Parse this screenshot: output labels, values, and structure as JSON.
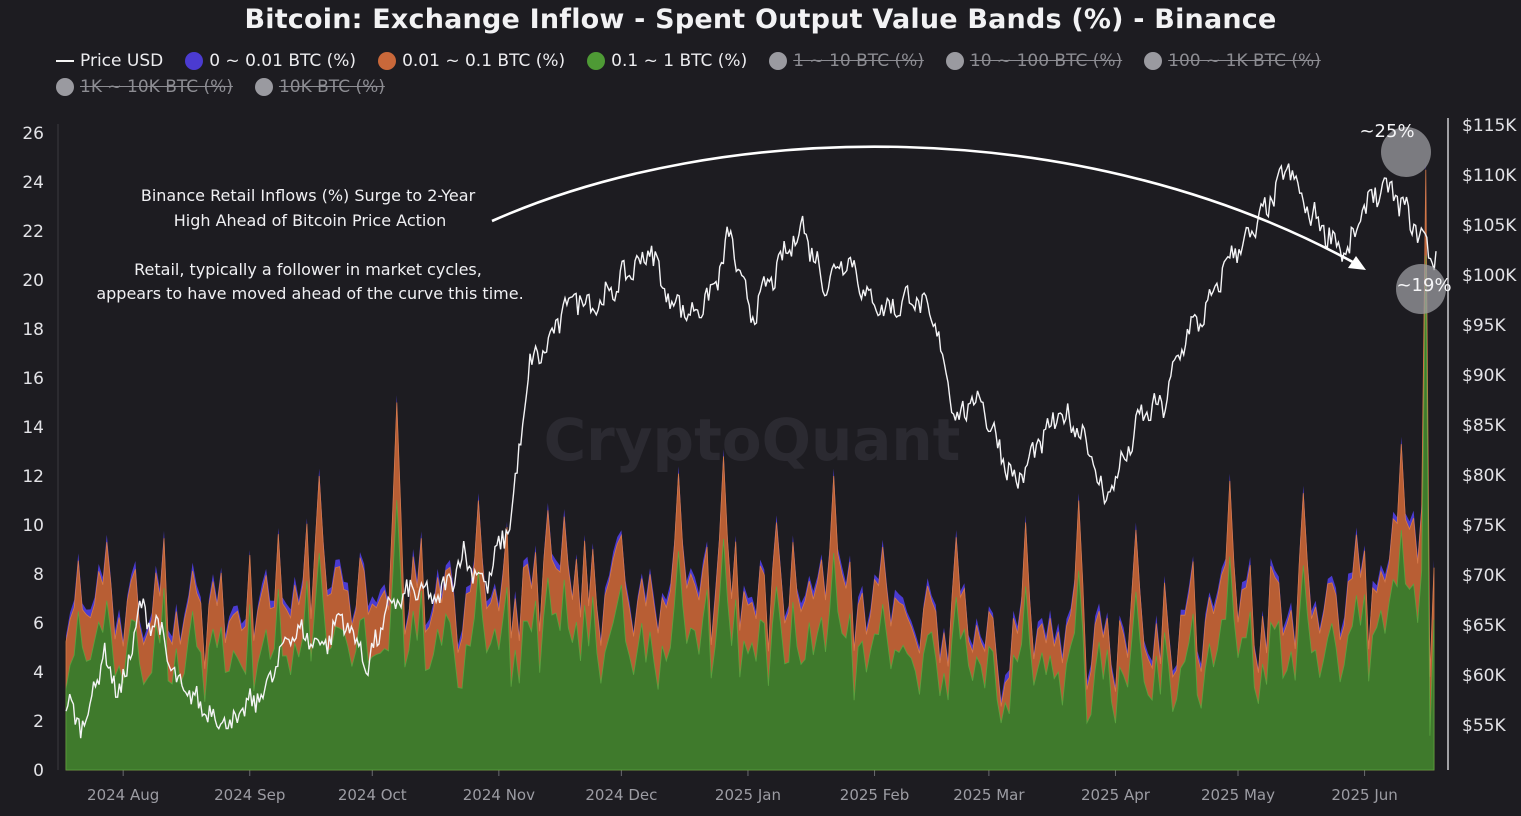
{
  "chart_data": {
    "type": "area",
    "title": "Bitcoin: Exchange Inflow - Spent Output Value Bands (%) - Binance",
    "watermark": "CryptoQuant",
    "y_left": {
      "min": 0,
      "max": 26,
      "ticks": [
        "0",
        "2",
        "4",
        "6",
        "8",
        "10",
        "12",
        "14",
        "16",
        "18",
        "20",
        "22",
        "24",
        "26"
      ]
    },
    "y_right": {
      "label": "Price USD",
      "min": 50000,
      "max": 115000,
      "ticks": [
        {
          "value": 55000,
          "label": "$55K"
        },
        {
          "value": 60000,
          "label": "$60K"
        },
        {
          "value": 65000,
          "label": "$65K"
        },
        {
          "value": 70000,
          "label": "$70K"
        },
        {
          "value": 75000,
          "label": "$75K"
        },
        {
          "value": 80000,
          "label": "$80K"
        },
        {
          "value": 85000,
          "label": "$85K"
        },
        {
          "value": 90000,
          "label": "$90K"
        },
        {
          "value": 95000,
          "label": "$95K"
        },
        {
          "value": 100000,
          "label": "$100K"
        },
        {
          "value": 105000,
          "label": "$105K"
        },
        {
          "value": 110000,
          "label": "$110K"
        },
        {
          "value": 115000,
          "label": "$115K"
        }
      ]
    },
    "x_ticks": [
      "2024 Aug",
      "2024 Sep",
      "2024 Oct",
      "2024 Nov",
      "2024 Dec",
      "2025 Jan",
      "2025 Feb",
      "2025 Mar",
      "2025 Apr",
      "2025 May",
      "2025 Jun"
    ],
    "x_range_days": 335,
    "x_tick_days": [
      14,
      45,
      75,
      106,
      136,
      167,
      198,
      226,
      257,
      287,
      318
    ],
    "legend": [
      {
        "label": "Price USD",
        "color": "#f4f4f4",
        "kind": "line",
        "enabled": true
      },
      {
        "label": "0 ~ 0.01 BTC (%)",
        "color": "#4b3bd1",
        "kind": "dot",
        "enabled": true
      },
      {
        "label": "0.01 ~ 0.1 BTC (%)",
        "color": "#c9683a",
        "kind": "dot",
        "enabled": true
      },
      {
        "label": "0.1 ~ 1 BTC (%)",
        "color": "#4e9a35",
        "kind": "dot",
        "enabled": true
      },
      {
        "label": "1 ~ 10 BTC (%)",
        "color": "#9a9aa0",
        "kind": "dot",
        "enabled": false
      },
      {
        "label": "10 ~ 100 BTC (%)",
        "color": "#9a9aa0",
        "kind": "dot",
        "enabled": false
      },
      {
        "label": "100 ~ 1K BTC (%)",
        "color": "#9a9aa0",
        "kind": "dot",
        "enabled": false
      },
      {
        "label": "1K ~ 10K BTC (%)",
        "color": "#9a9aa0",
        "kind": "dot",
        "enabled": false
      },
      {
        "label": "10K BTC (%)",
        "color": "#9a9aa0",
        "kind": "dot",
        "enabled": false
      }
    ],
    "series_keyframes": {
      "band_0.1_1_total_pct": [
        [
          0,
          4.5
        ],
        [
          20,
          4.6
        ],
        [
          40,
          4.3
        ],
        [
          60,
          4.9
        ],
        [
          75,
          5.4
        ],
        [
          90,
          4.7
        ],
        [
          106,
          4.6
        ],
        [
          125,
          5.3
        ],
        [
          140,
          5.1
        ],
        [
          160,
          4.9
        ],
        [
          180,
          4.6
        ],
        [
          200,
          4.4
        ],
        [
          220,
          3.9
        ],
        [
          230,
          3.1
        ],
        [
          250,
          3.6
        ],
        [
          270,
          3.7
        ],
        [
          290,
          4.2
        ],
        [
          305,
          4.5
        ],
        [
          320,
          5.0
        ],
        [
          335,
          6.5
        ]
      ],
      "band_0.01_0.1_total_pct": [
        [
          0,
          6.0
        ],
        [
          20,
          6.3
        ],
        [
          40,
          5.8
        ],
        [
          60,
          6.8
        ],
        [
          75,
          7.3
        ],
        [
          90,
          6.2
        ],
        [
          106,
          6.4
        ],
        [
          125,
          7.2
        ],
        [
          140,
          7.0
        ],
        [
          160,
          6.6
        ],
        [
          180,
          6.4
        ],
        [
          200,
          6.0
        ],
        [
          220,
          5.0
        ],
        [
          230,
          4.1
        ],
        [
          250,
          4.9
        ],
        [
          270,
          5.2
        ],
        [
          290,
          5.8
        ],
        [
          305,
          6.1
        ],
        [
          320,
          6.5
        ],
        [
          335,
          8.8
        ]
      ],
      "band_0_0.01_total_pct": [
        [
          0,
          6.2
        ],
        [
          20,
          6.5
        ],
        [
          40,
          6.0
        ],
        [
          60,
          7.0
        ],
        [
          75,
          7.5
        ],
        [
          90,
          6.4
        ],
        [
          106,
          6.6
        ],
        [
          125,
          7.4
        ],
        [
          140,
          7.2
        ],
        [
          160,
          6.8
        ],
        [
          180,
          6.6
        ],
        [
          200,
          6.2
        ],
        [
          220,
          5.2
        ],
        [
          230,
          4.3
        ],
        [
          250,
          5.1
        ],
        [
          270,
          5.4
        ],
        [
          290,
          6.0
        ],
        [
          305,
          6.3
        ],
        [
          320,
          6.7
        ],
        [
          335,
          9.0
        ]
      ],
      "spikes": [
        [
          10,
          9.6
        ],
        [
          36,
          8.0
        ],
        [
          62,
          12.3
        ],
        [
          81,
          15.3
        ],
        [
          101,
          11.3
        ],
        [
          118,
          10.9
        ],
        [
          150,
          12.4
        ],
        [
          161,
          13.1
        ],
        [
          174,
          10.4
        ],
        [
          188,
          12.3
        ],
        [
          200,
          9.4
        ],
        [
          218,
          9.8
        ],
        [
          235,
          10.4
        ],
        [
          248,
          11.3
        ],
        [
          262,
          10.1
        ],
        [
          285,
          12.1
        ],
        [
          303,
          11.6
        ],
        [
          316,
          9.9
        ],
        [
          327,
          13.6
        ],
        [
          333,
          8.3
        ]
      ],
      "retail_surge": [
        [
          333,
          25.0
        ],
        [
          336,
          8.3
        ],
        [
          338,
          19.0
        ]
      ],
      "price_usd": [
        [
          0,
          57000
        ],
        [
          5,
          55000
        ],
        [
          10,
          62000
        ],
        [
          15,
          58000
        ],
        [
          20,
          66500
        ],
        [
          25,
          65000
        ],
        [
          30,
          59000
        ],
        [
          40,
          56000
        ],
        [
          45,
          55000
        ],
        [
          55,
          59000
        ],
        [
          61,
          64500
        ],
        [
          70,
          63000
        ],
        [
          75,
          66000
        ],
        [
          82,
          61000
        ],
        [
          88,
          67000
        ],
        [
          95,
          68500
        ],
        [
          101,
          67500
        ],
        [
          108,
          72000
        ],
        [
          114,
          69000
        ],
        [
          121,
          76000
        ],
        [
          126,
          91000
        ],
        [
          131,
          93000
        ],
        [
          137,
          98000
        ],
        [
          145,
          97000
        ],
        [
          152,
          100000
        ],
        [
          159,
          102500
        ],
        [
          163,
          98000
        ],
        [
          170,
          96000
        ],
        [
          176,
          98500
        ],
        [
          180,
          104000
        ],
        [
          186,
          96000
        ],
        [
          193,
          100500
        ],
        [
          200,
          105000
        ],
        [
          206,
          99000
        ],
        [
          212,
          102000
        ],
        [
          218,
          97500
        ],
        [
          224,
          96500
        ],
        [
          230,
          98000
        ],
        [
          236,
          95000
        ],
        [
          242,
          85500
        ],
        [
          248,
          88000
        ],
        [
          252,
          84000
        ],
        [
          258,
          79000
        ],
        [
          264,
          83000
        ],
        [
          270,
          86000
        ],
        [
          276,
          84500
        ],
        [
          282,
          77500
        ],
        [
          288,
          82000
        ],
        [
          292,
          86000
        ],
        [
          298,
          87000
        ],
        [
          304,
          94000
        ],
        [
          310,
          96500
        ],
        [
          316,
          102000
        ],
        [
          322,
          104000
        ],
        [
          328,
          108000
        ],
        [
          332,
          111000
        ],
        [
          336,
          107000
        ],
        [
          342,
          104500
        ],
        [
          348,
          102000
        ],
        [
          354,
          108000
        ],
        [
          360,
          108500
        ],
        [
          366,
          105000
        ],
        [
          372,
          101500
        ]
      ]
    },
    "annotations": [
      {
        "text_lines": [
          "Binance Retail Inflows (%) Surge to 2-Year",
          "High Ahead of Bitcoin Price Action"
        ]
      },
      {
        "text_lines": [
          "Retail, typically a follower in market cycles,",
          "appears to have moved ahead of the curve this time."
        ]
      },
      {
        "callout": "~25%",
        "value": 25
      },
      {
        "callout": "~19%",
        "value": 19
      }
    ]
  }
}
